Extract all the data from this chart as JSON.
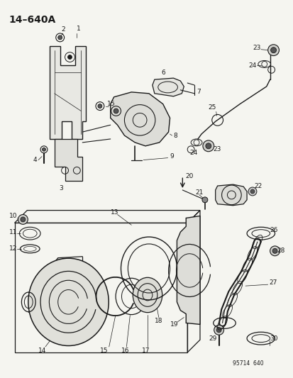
{
  "title": "14–640A",
  "subtitle": "95714  640",
  "bg_color": "#f5f5f0",
  "line_color": "#1a1a1a",
  "title_fontsize": 10,
  "label_fontsize": 6.5,
  "fig_width": 4.14,
  "fig_height": 5.33,
  "dpi": 100
}
